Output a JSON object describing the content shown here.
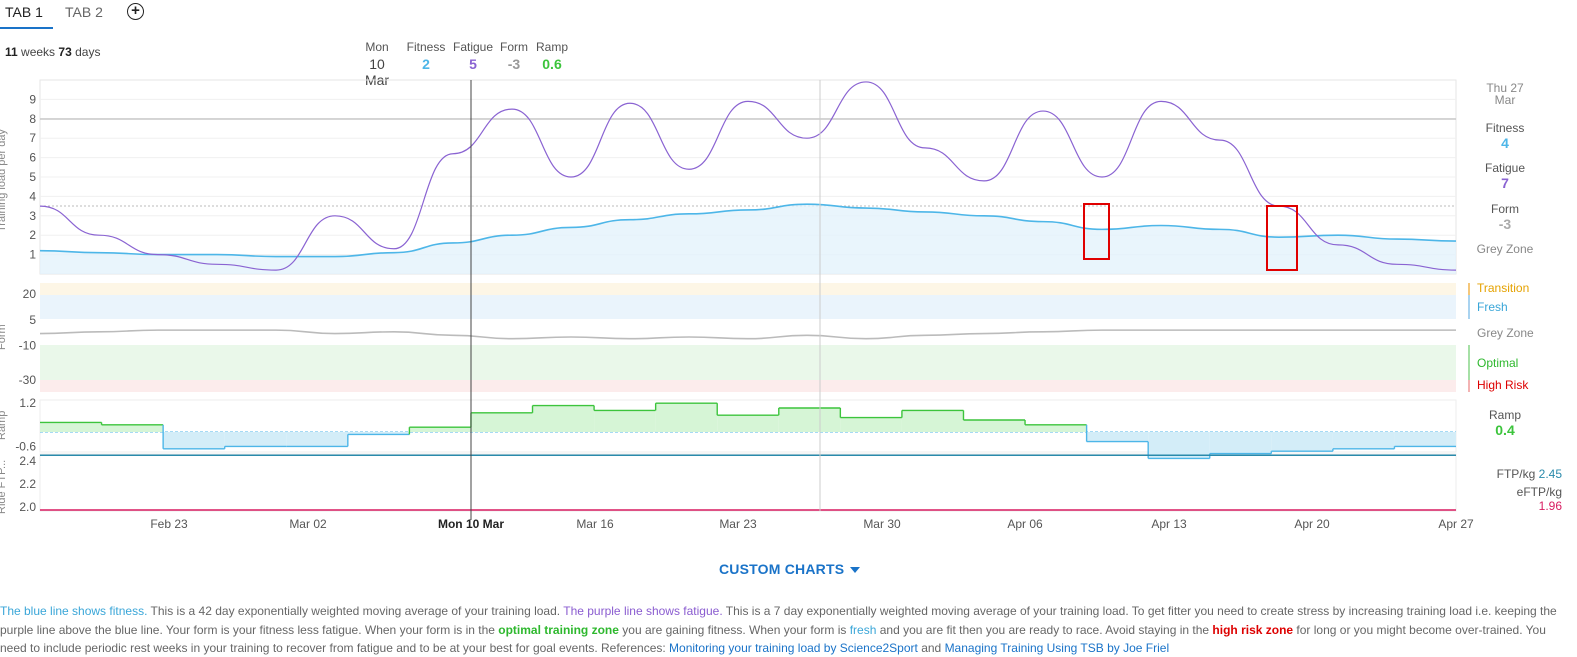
{
  "tabs": [
    {
      "label": "TAB 1"
    },
    {
      "label": "TAB 2"
    }
  ],
  "range": {
    "weeks": "11",
    "weeks_unit": "weeks",
    "days": "73",
    "days_unit": "days"
  },
  "cursor_readout": {
    "day": "Mon",
    "date": "10 Mar",
    "fitness_label": "Fitness",
    "fitness": "2",
    "fatigue_label": "Fatigue",
    "fatigue": "5",
    "form_label": "Form",
    "form": "-3",
    "ramp_label": "Ramp",
    "ramp": "0.6"
  },
  "right_panel": {
    "day": "Thu 27",
    "month": "Mar",
    "fitness_label": "Fitness",
    "fitness": "4",
    "fatigue_label": "Fatigue",
    "fatigue": "7",
    "form_label": "Form",
    "form": "-3",
    "zone": "Grey Zone",
    "ramp_label": "Ramp",
    "ramp": "0.4",
    "ftp_label": "FTP/kg",
    "ftp": "2.45",
    "eftp_label": "eFTP/kg",
    "eftp": "1.96"
  },
  "form_zones": {
    "transition": "Transition",
    "fresh": "Fresh",
    "grey": "Grey Zone",
    "optimal": "Optimal",
    "high_risk": "High Risk"
  },
  "axis_titles": {
    "load": "Training load per day",
    "form": "Form",
    "ramp": "Ramp",
    "ftp": "Ride FTP..."
  },
  "colors": {
    "fitness": "#4db6e8",
    "fatigue": "#8a63d2",
    "form": "#bbbbbb",
    "ramp_up": "#3cc43c",
    "ramp_fill_up": "#d6f5d6",
    "ramp_fill_down": "#d3edf8",
    "ftp": "#2a8aab",
    "eftp": "#d81b60",
    "zone_transition": "#fdf6e6",
    "zone_fresh": "#eaf4fc",
    "zone_optimal": "#eaf8ea",
    "zone_risk": "#fcecec",
    "highlight_box": "#e00000",
    "link": "#1a73c8"
  },
  "chart_data": {
    "type": "line",
    "x_tick_labels": [
      "Feb 23",
      "Mar 02",
      "Mon 10 Mar",
      "Mar 16",
      "Mar 23",
      "Mar 30",
      "Apr 06",
      "Apr 13",
      "Apr 20",
      "Apr 27"
    ],
    "load_y_ticks": [
      "1",
      "2",
      "3",
      "4",
      "5",
      "6",
      "7",
      "8",
      "9"
    ],
    "form_y_ticks": [
      "20",
      "5",
      "-10",
      "-30"
    ],
    "ramp_y_ticks": [
      "1.2",
      "-0.6"
    ],
    "ftp_y_ticks": [
      "2.4",
      "2.2",
      "2.0"
    ],
    "series": [
      {
        "name": "Fitness",
        "values": [
          1.2,
          1.1,
          1.0,
          1.0,
          0.9,
          0.9,
          1.1,
          1.6,
          2.0,
          2.4,
          2.8,
          3.1,
          3.3,
          3.6,
          3.4,
          3.2,
          3.0,
          2.7,
          2.3,
          2.5,
          2.3,
          1.9,
          2.0,
          1.8,
          1.7
        ]
      },
      {
        "name": "Fatigue",
        "values": [
          3.5,
          2.0,
          1.0,
          0.5,
          0.2,
          3.0,
          1.3,
          6.2,
          8.5,
          5.0,
          8.8,
          5.4,
          8.9,
          7.0,
          9.9,
          6.5,
          4.8,
          8.4,
          5.0,
          8.9,
          6.9,
          3.5,
          1.5,
          0.5,
          0.2
        ]
      },
      {
        "name": "Form",
        "values": [
          -3,
          -2,
          -1,
          -1,
          -1,
          -3,
          -2,
          -4,
          -6,
          -5,
          -6,
          -5,
          -6,
          -4,
          -6,
          -4,
          -3,
          -2,
          -1,
          -1,
          -1,
          -1,
          -1,
          -1,
          -1
        ]
      },
      {
        "name": "Ramp",
        "values": [
          0.4,
          0.3,
          -0.7,
          -0.6,
          -0.6,
          -0.1,
          0.2,
          0.8,
          1.1,
          0.9,
          1.2,
          0.7,
          1.0,
          0.6,
          0.9,
          0.5,
          0.3,
          -0.4,
          -1.1,
          -0.9,
          -0.8,
          -0.7,
          -0.6
        ]
      },
      {
        "name": "FTP/kg",
        "values": [
          2.45,
          2.45
        ]
      },
      {
        "name": "eFTP/kg",
        "values": [
          1.96,
          1.96
        ]
      }
    ]
  },
  "custom_charts": {
    "label": "CUSTOM CHARTS"
  },
  "description": {
    "p1": "The blue line shows fitness.",
    "p2": " This is a 42 day exponentially weighted moving average of your training load. ",
    "p3": "The purple line shows fatigue.",
    "p4": " This is a 7 day exponentially weighted moving average of your training load. To get fitter you need to create stress by increasing training load i.e. keeping the purple line above the blue line. Your form is your fitness less fatigue. When your form is in the ",
    "p5": "optimal training zone",
    "p6": " you are gaining fitness. When your form is ",
    "p7": "fresh",
    "p8": " and you are fit then you are ready to race. Avoid staying in the ",
    "p9": "high risk zone",
    "p10": " for long or you might become over-trained. You need to include periodic rest weeks in your training to recover from fatigue and to be at your best for goal events. References: ",
    "link1": "Monitoring your training load by Science2Sport",
    "p11": " and ",
    "link2": "Managing Training Using TSB by Joe Friel"
  }
}
